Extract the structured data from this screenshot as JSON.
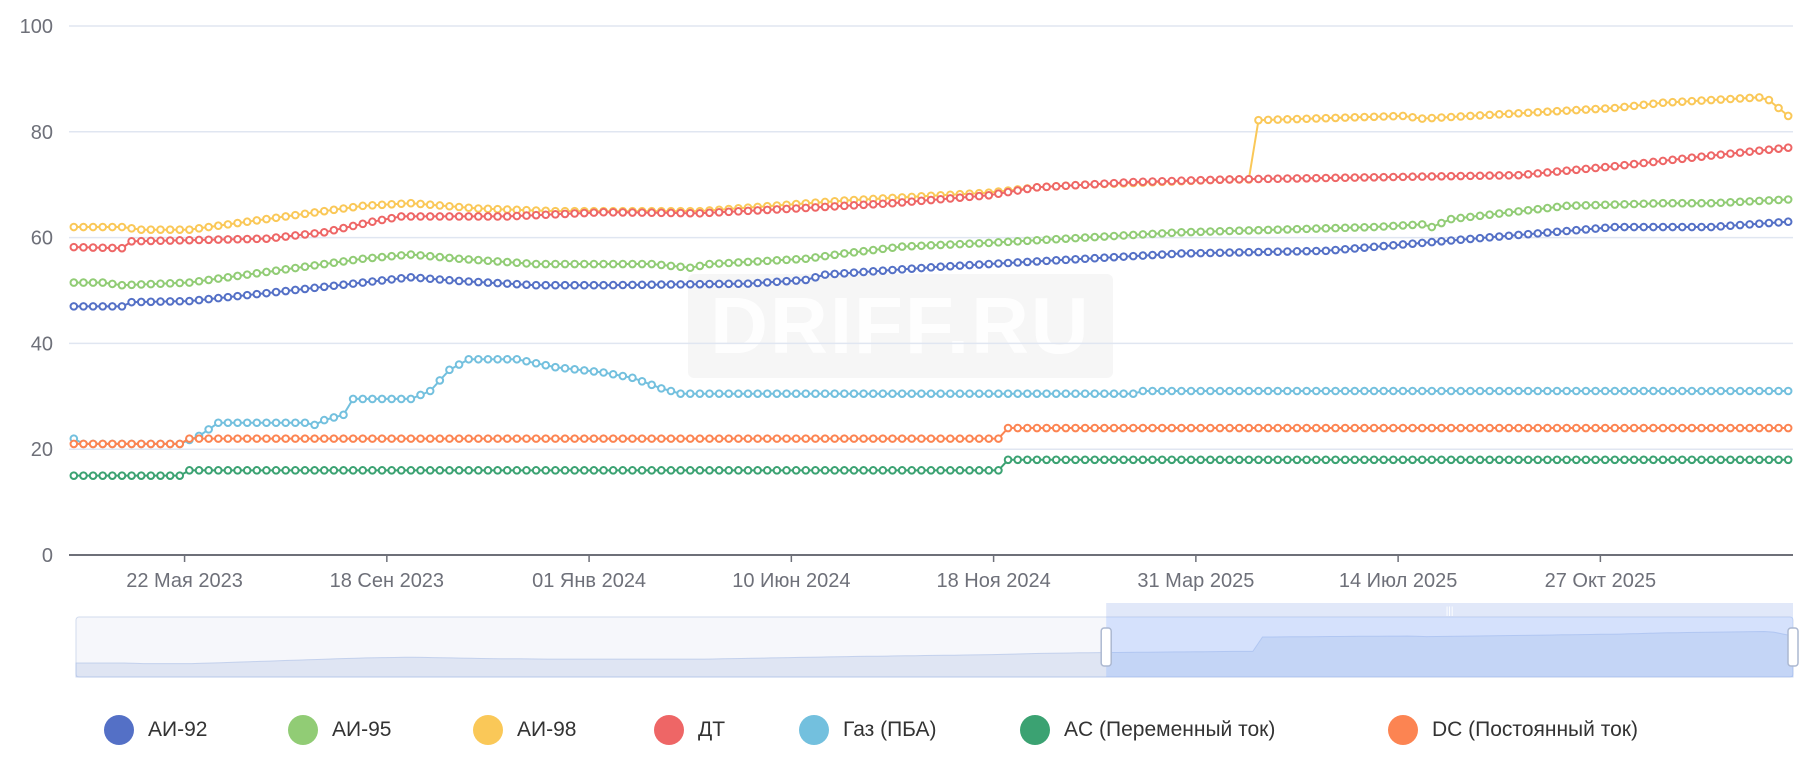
{
  "chart_data": {
    "type": "line",
    "title": "",
    "xlabel": "",
    "ylabel": "",
    "ylim": [
      0,
      100
    ],
    "yticks": [
      "0",
      "20",
      "40",
      "60",
      "80",
      "100"
    ],
    "x_count": 179,
    "x_tick_labels": [
      {
        "index": 12,
        "label": "22 Мая 2023"
      },
      {
        "index": 33,
        "label": "18 Сен 2023"
      },
      {
        "index": 54,
        "label": "01 Янв 2024"
      },
      {
        "index": 75,
        "label": "10 Июн 2024"
      },
      {
        "index": 96,
        "label": "18 Ноя 2024"
      },
      {
        "index": 117,
        "label": "31 Мар 2025"
      },
      {
        "index": 138,
        "label": "14 Июл 2025"
      },
      {
        "index": 159,
        "label": "27 Окт 2025"
      }
    ],
    "grid": true,
    "legend_position": "bottom",
    "navigator_range": [
      0.6,
      1.0
    ],
    "series": [
      {
        "name": "АИ-92",
        "color": "#5470c6",
        "points": [
          [
            0,
            47
          ],
          [
            5,
            47
          ],
          [
            6,
            47.8
          ],
          [
            12,
            48
          ],
          [
            20,
            49.5
          ],
          [
            30,
            51.5
          ],
          [
            35,
            52.5
          ],
          [
            40,
            51.8
          ],
          [
            48,
            51
          ],
          [
            55,
            51
          ],
          [
            70,
            51.3
          ],
          [
            76,
            52
          ],
          [
            78,
            53
          ],
          [
            90,
            54.5
          ],
          [
            100,
            55.5
          ],
          [
            115,
            57
          ],
          [
            130,
            57.5
          ],
          [
            140,
            59
          ],
          [
            150,
            60.5
          ],
          [
            160,
            62
          ],
          [
            170,
            62
          ],
          [
            178,
            63
          ]
        ]
      },
      {
        "name": "АИ-95",
        "color": "#91cc75",
        "points": [
          [
            0,
            51.5
          ],
          [
            3,
            51.5
          ],
          [
            5,
            51
          ],
          [
            12,
            51.5
          ],
          [
            20,
            53.5
          ],
          [
            30,
            56
          ],
          [
            35,
            56.8
          ],
          [
            40,
            56
          ],
          [
            48,
            55
          ],
          [
            60,
            55
          ],
          [
            64,
            54.3
          ],
          [
            66,
            55
          ],
          [
            76,
            56
          ],
          [
            80,
            57
          ],
          [
            86,
            58.3
          ],
          [
            95,
            59
          ],
          [
            110,
            60.5
          ],
          [
            115,
            61
          ],
          [
            125,
            61.5
          ],
          [
            135,
            62
          ],
          [
            140,
            62.5
          ],
          [
            141,
            62
          ],
          [
            143,
            63.5
          ],
          [
            155,
            66
          ],
          [
            165,
            66.5
          ],
          [
            170,
            66.5
          ],
          [
            178,
            67.2
          ]
        ]
      },
      {
        "name": "АИ-98",
        "color": "#fac858",
        "points": [
          [
            0,
            62
          ],
          [
            5,
            62
          ],
          [
            7,
            61.5
          ],
          [
            12,
            61.5
          ],
          [
            22,
            64
          ],
          [
            30,
            66
          ],
          [
            35,
            66.5
          ],
          [
            42,
            65.5
          ],
          [
            50,
            65
          ],
          [
            65,
            65
          ],
          [
            80,
            67
          ],
          [
            90,
            68
          ],
          [
            95,
            68.5
          ],
          [
            100,
            69.5
          ],
          [
            105,
            70
          ],
          [
            120,
            71
          ],
          [
            122,
            71
          ],
          [
            123,
            82.2
          ],
          [
            138,
            83
          ],
          [
            140,
            82.5
          ],
          [
            150,
            83.5
          ],
          [
            160,
            84.5
          ],
          [
            165,
            85.5
          ],
          [
            175,
            86.5
          ],
          [
            176,
            86
          ],
          [
            178,
            83
          ]
        ]
      },
      {
        "name": "ДТ",
        "color": "#ee6666",
        "points": [
          [
            0,
            58.2
          ],
          [
            5,
            58
          ],
          [
            6,
            59.3
          ],
          [
            20,
            59.8
          ],
          [
            26,
            61
          ],
          [
            31,
            63
          ],
          [
            34,
            64
          ],
          [
            45,
            64
          ],
          [
            55,
            64.8
          ],
          [
            65,
            64.6
          ],
          [
            75,
            65.5
          ],
          [
            85,
            66.5
          ],
          [
            95,
            68
          ],
          [
            100,
            69.5
          ],
          [
            110,
            70.5
          ],
          [
            120,
            71
          ],
          [
            150,
            71.8
          ],
          [
            160,
            73.5
          ],
          [
            170,
            75.5
          ],
          [
            178,
            77
          ]
        ]
      },
      {
        "name": "Газ (ПБА)",
        "color": "#73c0de",
        "points": [
          [
            0,
            22
          ],
          [
            1,
            21
          ],
          [
            11,
            21
          ],
          [
            13,
            22.5
          ],
          [
            15,
            25
          ],
          [
            24,
            25
          ],
          [
            25,
            24.6
          ],
          [
            26,
            25.5
          ],
          [
            28,
            26.5
          ],
          [
            29,
            29.5
          ],
          [
            35,
            29.5
          ],
          [
            37,
            31
          ],
          [
            39,
            35
          ],
          [
            41,
            37
          ],
          [
            46,
            37
          ],
          [
            50,
            35.5
          ],
          [
            55,
            34.5
          ],
          [
            58,
            33.5
          ],
          [
            61,
            31.5
          ],
          [
            63,
            30.5
          ],
          [
            110,
            30.5
          ],
          [
            111,
            31
          ],
          [
            178,
            31
          ]
        ]
      },
      {
        "name": "AC (Переменный ток)",
        "color": "#3ba272",
        "points": [
          [
            0,
            15
          ],
          [
            11,
            15
          ],
          [
            12,
            16
          ],
          [
            96,
            16
          ],
          [
            97,
            18
          ],
          [
            178,
            18
          ]
        ]
      },
      {
        "name": "DC (Постоянный ток)",
        "color": "#fc8452",
        "points": [
          [
            0,
            21
          ],
          [
            11,
            21
          ],
          [
            12,
            22
          ],
          [
            96,
            22
          ],
          [
            97,
            24
          ],
          [
            178,
            24
          ]
        ]
      }
    ]
  },
  "watermark": "DRIFF.RU"
}
